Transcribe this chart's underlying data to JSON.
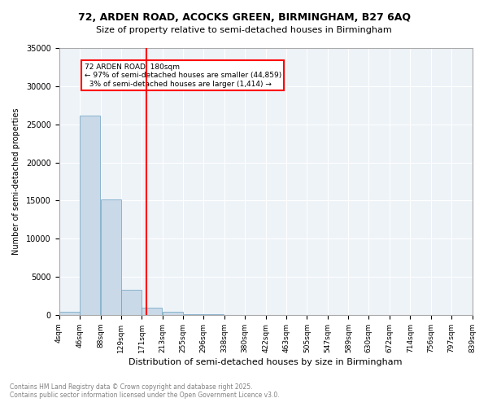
{
  "title_line1": "72, ARDEN ROAD, ACOCKS GREEN, BIRMINGHAM, B27 6AQ",
  "title_line2": "Size of property relative to semi-detached houses in Birmingham",
  "xlabel": "Distribution of semi-detached houses by size in Birmingham",
  "ylabel": "Number of semi-detached properties",
  "footnote": "Contains HM Land Registry data © Crown copyright and database right 2025.\nContains public sector information licensed under the Open Government Licence v3.0.",
  "property_size": 180,
  "property_label": "72 ARDEN ROAD: 180sqm",
  "pct_smaller": 97,
  "count_smaller": 44859,
  "pct_larger": 3,
  "count_larger": 1414,
  "bin_edges": [
    4,
    46,
    88,
    129,
    171,
    213,
    255,
    296,
    338,
    380,
    422,
    463,
    505,
    547,
    589,
    630,
    672,
    714,
    756,
    797,
    839
  ],
  "bin_labels": [
    "4sqm",
    "46sqm",
    "88sqm",
    "129sqm",
    "171sqm",
    "213sqm",
    "255sqm",
    "296sqm",
    "338sqm",
    "380sqm",
    "422sqm",
    "463sqm",
    "505sqm",
    "547sqm",
    "589sqm",
    "630sqm",
    "672sqm",
    "714sqm",
    "756sqm",
    "797sqm",
    "839sqm"
  ],
  "bar_heights": [
    400,
    26100,
    15100,
    3300,
    1000,
    400,
    150,
    50,
    20,
    10,
    5,
    3,
    2,
    1,
    1,
    0,
    0,
    0,
    0,
    0
  ],
  "bar_color": "#c9d9e8",
  "bar_edge_color": "#6a9fc0",
  "vline_color": "red",
  "vline_x": 180,
  "annotation_box_color": "red",
  "background_color": "#eef3f8",
  "grid_color": "white",
  "ylim": [
    0,
    35000
  ],
  "yticks": [
    0,
    5000,
    10000,
    15000,
    20000,
    25000,
    30000,
    35000
  ]
}
